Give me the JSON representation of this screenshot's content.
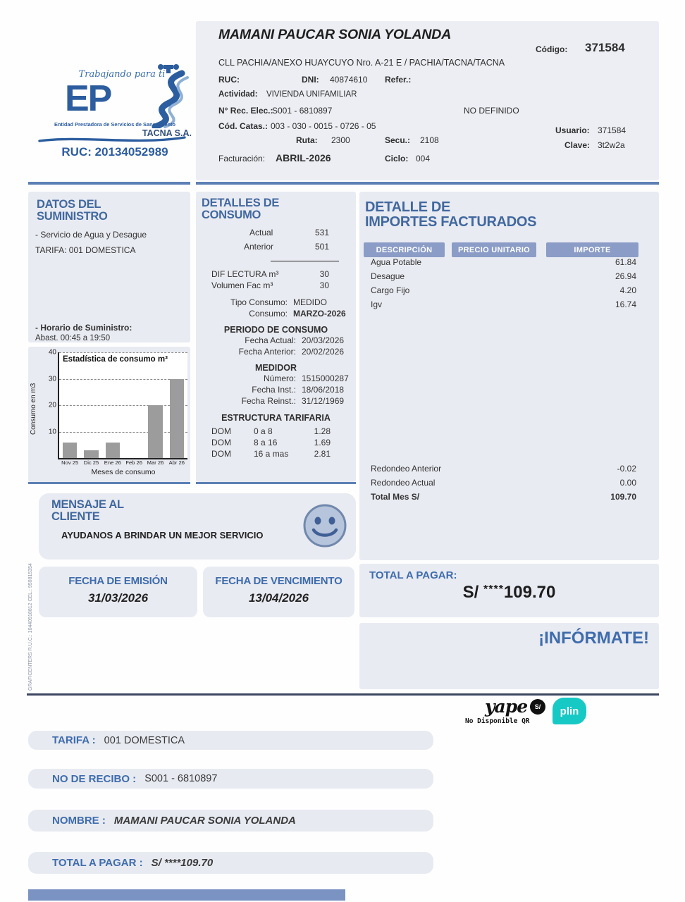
{
  "brand": {
    "tagline": "Trabajando para ti",
    "logo_letters": "EP",
    "subtitle": "Entidad Prestadora de Servicios de Saneamiento",
    "company": "TACNA S.A.",
    "ruc": "RUC: 20134052989"
  },
  "header": {
    "customer_name": "MAMANI PAUCAR SONIA YOLANDA",
    "codigo_label": "Código:",
    "codigo": "371584",
    "address": "CLL PACHIA/ANEXO HUAYCUYO Nro. A-21 E / PACHIA/TACNA/TACNA",
    "ruc_label": "RUC:",
    "dni_label": "DNI:",
    "dni": "40874610",
    "refer_label": "Refer.:",
    "actividad_label": "Actividad:",
    "actividad": "VIVIENDA UNIFAMILIAR",
    "rec_elec_label": "N° Rec. Elec.:",
    "rec_elec": "S001 - 6810897",
    "no_definido": "NO DEFINIDO",
    "cod_catas_label": "Cód. Catas.:",
    "cod_catas": "003 - 030 - 0015 - 0726 - 05",
    "ruta_label": "Ruta:",
    "ruta": "2300",
    "secu_label": "Secu.:",
    "secu": "2108",
    "usuario_label": "Usuario:",
    "usuario": "371584",
    "clave_label": "Clave:",
    "clave": "3t2w2a",
    "facturacion_label": "Facturación:",
    "facturacion": "ABRIL-2026",
    "ciclo_label": "Ciclo:",
    "ciclo": "004"
  },
  "suministro": {
    "title_line1": "DATOS DEL",
    "title_line2": "SUMINISTRO",
    "servicio": "- Servicio de Agua y Desague",
    "tarifa": "TARIFA: 001 DOMESTICA",
    "horario_label": "- Horario de Suministro:",
    "horario": "Abast. 00:45 a 19:50"
  },
  "chart_data": {
    "type": "bar",
    "title": "Estadística de consumo m³",
    "xlabel": "Meses de consumo",
    "ylabel": "Consumo en m3",
    "categories": [
      "Nov 25",
      "Dic 25",
      "Ene 26",
      "Feb 26",
      "Mar 26",
      "Abr 26"
    ],
    "values": [
      6,
      3,
      6,
      0,
      20,
      30
    ],
    "ylim": [
      0,
      40
    ],
    "yticks": [
      10,
      20,
      30,
      40
    ],
    "grid": "dashed-horizontal",
    "legend": "none",
    "bar_color": "#9c9c9c"
  },
  "consumo": {
    "title_line1": "DETALLES DE",
    "title_line2": "CONSUMO",
    "actual_label": "Actual",
    "actual": "531",
    "anterior_label": "Anterior",
    "anterior": "501",
    "dif_label": "DIF LECTURA m³",
    "dif": "30",
    "vol_label": "Volumen Fac m³",
    "vol": "30",
    "tipo_label": "Tipo Consumo:",
    "tipo": "MEDIDO",
    "consumo_label": "Consumo:",
    "consumo_mes": "MARZO-2026",
    "periodo_title": "PERIODO DE CONSUMO",
    "fecha_actual_label": "Fecha Actual:",
    "fecha_actual": "20/03/2026",
    "fecha_anterior_label": "Fecha Anterior:",
    "fecha_anterior": "20/02/2026",
    "medidor_title": "MEDIDOR",
    "numero_label": "Número:",
    "numero": "1515000287",
    "fecha_inst_label": "Fecha Inst.:",
    "fecha_inst": "18/06/2018",
    "fecha_reinst_label": "Fecha Reinst.:",
    "fecha_reinst": "31/12/1969",
    "estructura_title": "ESTRUCTURA TARIFARIA",
    "tarifas": [
      {
        "cat": "DOM",
        "rango": "0 a 8",
        "precio": "1.28"
      },
      {
        "cat": "DOM",
        "rango": "8 a 16",
        "precio": "1.69"
      },
      {
        "cat": "DOM",
        "rango": "16 a mas",
        "precio": "2.81"
      }
    ]
  },
  "importes": {
    "title_line1": "DETALLE DE",
    "title_line2": "IMPORTES FACTURADOS",
    "headers": [
      "DESCRIPCIÓN",
      "PRECIO UNITARIO",
      "IMPORTE"
    ],
    "rows": [
      {
        "desc": "Agua Potable",
        "importe": "61.84"
      },
      {
        "desc": "Desague",
        "importe": "26.94"
      },
      {
        "desc": "Cargo Fijo",
        "importe": "4.20"
      },
      {
        "desc": "Igv",
        "importe": "16.74"
      }
    ],
    "redondeo_anterior_label": "Redondeo Anterior",
    "redondeo_anterior": "-0.02",
    "redondeo_actual_label": "Redondeo Actual",
    "redondeo_actual": "0.00",
    "total_label": "Total Mes S/",
    "total": "109.70"
  },
  "mensaje": {
    "title_line1": "MENSAJE AL",
    "title_line2": "CLIENTE",
    "texto": "AYUDANOS A BRINDAR UN MEJOR SERVICIO"
  },
  "fechas": {
    "emision_label": "FECHA DE EMISIÓN",
    "emision": "31/03/2026",
    "vencimiento_label": "FECHA DE VENCIMIENTO",
    "vencimiento": "13/04/2026"
  },
  "total_pagar": {
    "label": "TOTAL A PAGAR:",
    "prefix": "S/",
    "stars": "****",
    "amount": "109.70"
  },
  "informate": "¡INFÓRMATE!",
  "payment": {
    "yape_label": "yape",
    "yape_badge": "S/",
    "plin_label": "plin",
    "qr_note": "No Disponible QR"
  },
  "footer_rows": [
    {
      "label": "TARIFA :",
      "value": "001 DOMESTICA"
    },
    {
      "label": "NO DE RECIBO :",
      "value": "S001 - 6810897"
    },
    {
      "label": "NOMBRE :",
      "value": "MAMANI PAUCAR SONIA YOLANDA"
    },
    {
      "label": "TOTAL A PAGAR :",
      "value": "S/ ****109.70"
    }
  ],
  "side_note": "GRAFICENTERS   R.U.C.: 10440918812   CEL.: 950815354"
}
